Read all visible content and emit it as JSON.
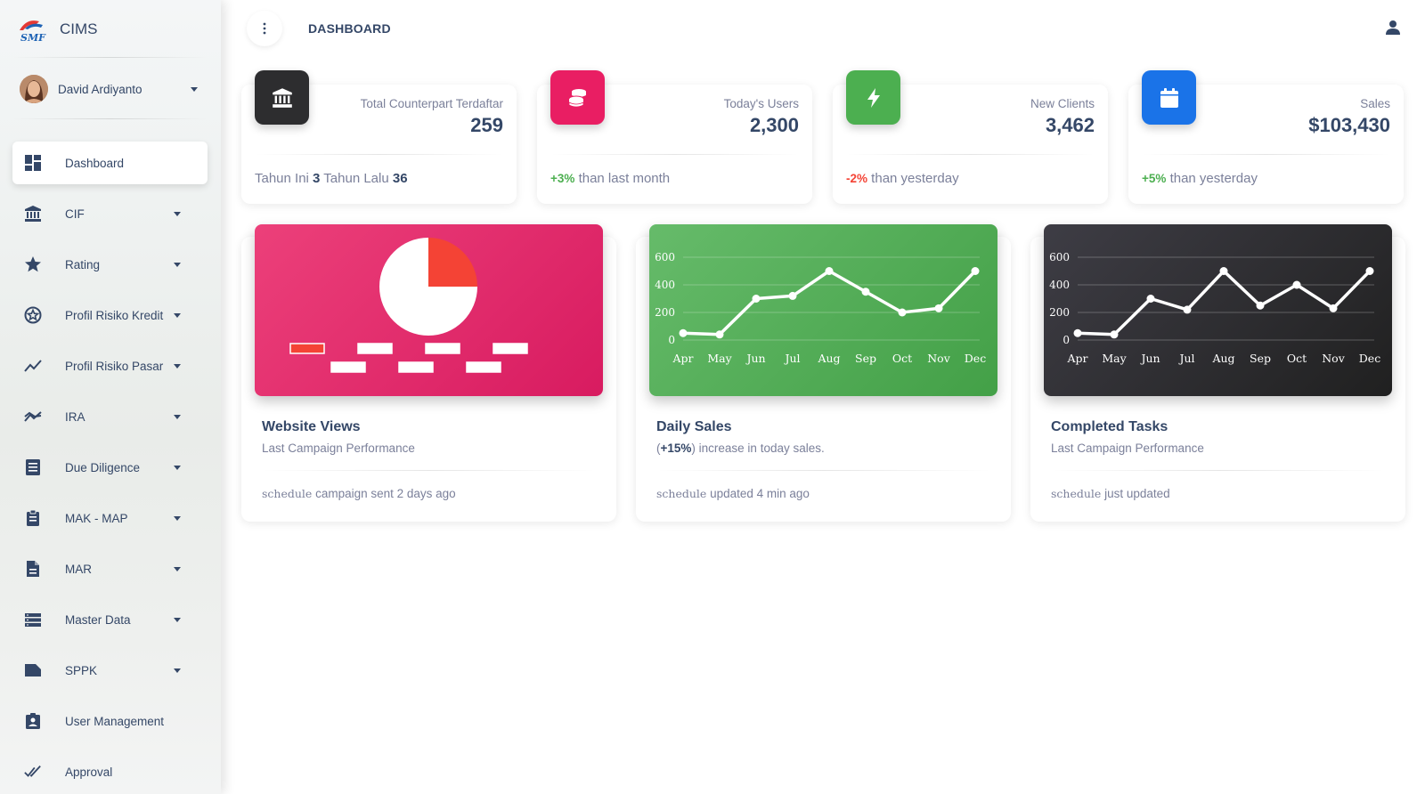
{
  "app": {
    "name": "CIMS",
    "logo_text": "SMF"
  },
  "user": {
    "name": "David Ardiyanto"
  },
  "sidebar": {
    "items": [
      {
        "label": "Dashboard",
        "icon": "dashboard-icon",
        "active": true,
        "has_submenu": false
      },
      {
        "label": "CIF",
        "icon": "bank-icon",
        "has_submenu": true
      },
      {
        "label": "Rating",
        "icon": "star-icon",
        "has_submenu": true
      },
      {
        "label": "Profil Risiko Kredit",
        "icon": "stars-circle-icon",
        "has_submenu": true
      },
      {
        "label": "Profil Risiko Pasar",
        "icon": "trending-icon",
        "has_submenu": true
      },
      {
        "label": "IRA",
        "icon": "multiline-chart-icon",
        "has_submenu": true
      },
      {
        "label": "Due Diligence",
        "icon": "list-document-icon",
        "has_submenu": true
      },
      {
        "label": "MAK - MAP",
        "icon": "clipboard-icon",
        "has_submenu": true
      },
      {
        "label": "MAR",
        "icon": "file-icon",
        "has_submenu": true
      },
      {
        "label": "Master Data",
        "icon": "storage-icon",
        "has_submenu": true
      },
      {
        "label": "SPPK",
        "icon": "folder-icon",
        "has_submenu": true
      },
      {
        "label": "User Management",
        "icon": "assignment-ind-icon",
        "has_submenu": false
      },
      {
        "label": "Approval",
        "icon": "done-all-icon",
        "has_submenu": false
      }
    ]
  },
  "header": {
    "title": "DASHBOARD"
  },
  "stats": [
    {
      "label": "Total Counterpart Terdaftar",
      "value": "259",
      "icon": "bank-icon",
      "color": "#2d2d2f",
      "foot": {
        "prefix1": "Tahun Ini ",
        "val1": "3",
        "prefix2": " Tahun Lalu ",
        "val2": "36"
      }
    },
    {
      "label": "Today's Users",
      "value": "2,300",
      "icon": "coins-icon",
      "color": "#e91e63",
      "foot": {
        "change": "+3%",
        "text": " than last month"
      }
    },
    {
      "label": "New Clients",
      "value": "3,462",
      "icon": "bolt-icon",
      "color": "#4caf50",
      "foot": {
        "change": "-2%",
        "text": " than yesterday"
      }
    },
    {
      "label": "Sales",
      "value": "$103,430",
      "icon": "calendar-icon",
      "color": "#1a73e8",
      "foot": {
        "change": "+5%",
        "text": " than yesterday"
      }
    }
  ],
  "cards": [
    {
      "title": "Website Views",
      "subtitle": "Last Campaign Performance",
      "foot_icon": "schedule",
      "foot_text": " campaign sent 2 days ago",
      "color": "#e91e63"
    },
    {
      "title": "Daily Sales",
      "subtitle_bold": "+15%",
      "subtitle_pre": "(",
      "subtitle_post": ") increase in today sales.",
      "foot_icon": "schedule",
      "foot_text": " updated 4 min ago",
      "color": "#4caf50"
    },
    {
      "title": "Completed Tasks",
      "subtitle": "Last Campaign Performance",
      "foot_icon": "schedule",
      "foot_text": " just updated",
      "color": "#2d2d2f"
    }
  ],
  "chart_data": [
    {
      "type": "pie",
      "categories": [
        "",
        "",
        "",
        "",
        "",
        "",
        ""
      ],
      "values": [
        25,
        0,
        0,
        0,
        0,
        0,
        75
      ],
      "colors": [
        "#f44335",
        "#ffffff",
        "#ffffff",
        "#ffffff",
        "#ffffff",
        "#ffffff",
        "#ffffff"
      ],
      "legend_position": "bottom",
      "title": ""
    },
    {
      "type": "line",
      "x": [
        "Apr",
        "May",
        "Jun",
        "Jul",
        "Aug",
        "Sep",
        "Oct",
        "Nov",
        "Dec"
      ],
      "series": [
        {
          "values": [
            50,
            40,
            300,
            320,
            500,
            350,
            200,
            230,
            500
          ]
        }
      ],
      "ylim": [
        0,
        600
      ],
      "yticks": [
        0,
        200,
        400,
        600
      ],
      "grid": true,
      "title": ""
    },
    {
      "type": "line",
      "x": [
        "Apr",
        "May",
        "Jun",
        "Jul",
        "Aug",
        "Sep",
        "Oct",
        "Nov",
        "Dec"
      ],
      "series": [
        {
          "values": [
            50,
            40,
            300,
            220,
            500,
            250,
            400,
            230,
            500
          ]
        }
      ],
      "ylim": [
        0,
        600
      ],
      "yticks": [
        0,
        200,
        400,
        600
      ],
      "grid": true,
      "title": ""
    }
  ]
}
